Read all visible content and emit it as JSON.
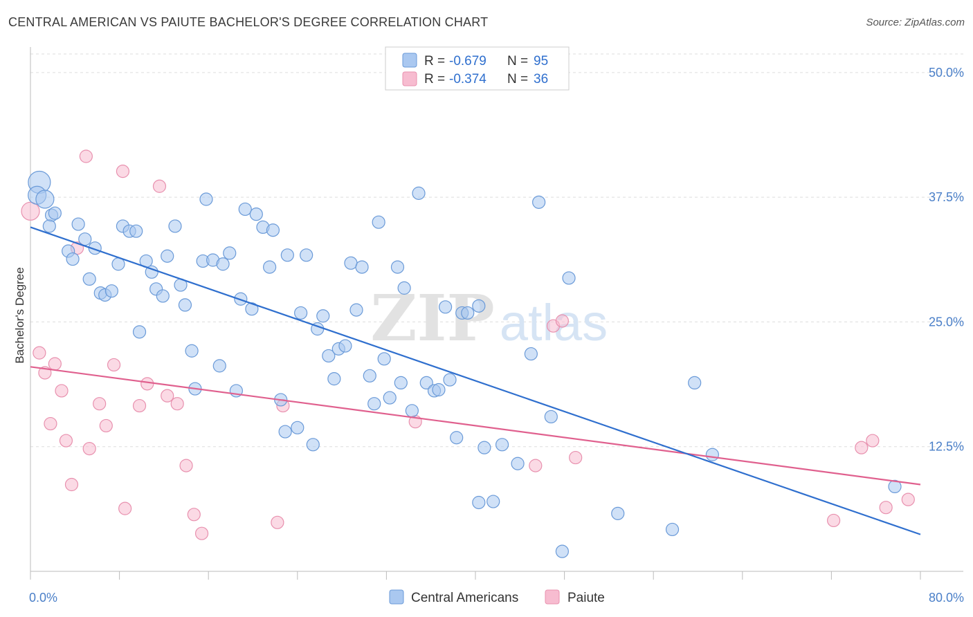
{
  "header": {
    "title": "CENTRAL AMERICAN VS PAIUTE BACHELOR'S DEGREE CORRELATION CHART",
    "source": "Source: ZipAtlas.com"
  },
  "watermark": {
    "zip": "ZIP",
    "atlas": "atlas"
  },
  "legend_top": {
    "r_label": "R =",
    "n_label": "N =",
    "rows": [
      {
        "r": "-0.679",
        "n": "95"
      },
      {
        "r": "-0.374",
        "n": "36"
      }
    ]
  },
  "colors": {
    "blue_fill": "#aac8f0",
    "blue_stroke": "#6a9ad8",
    "blue_line": "#2f6fce",
    "pink_fill": "#f7bcd0",
    "pink_stroke": "#e890ae",
    "pink_line": "#e0608e",
    "grid": "#dddddd",
    "tick_label": "#4a7fc8"
  },
  "chart_data": {
    "type": "scatter",
    "title": "CENTRAL AMERICAN VS PAIUTE BACHELOR'S DEGREE CORRELATION CHART",
    "xlabel": "",
    "ylabel": "Bachelor's Degree",
    "xlim": [
      0,
      80
    ],
    "ylim": [
      0,
      52
    ],
    "x_tick_labels": [
      "0.0%",
      "80.0%"
    ],
    "y_ticks": [
      12.5,
      25.0,
      37.5,
      50.0
    ],
    "y_tick_labels": [
      "12.5%",
      "25.0%",
      "37.5%",
      "50.0%"
    ],
    "grid": "horizontal dashed",
    "legend_placement": "top-center",
    "series": [
      {
        "name": "Central Americans",
        "r": -0.679,
        "n": 95,
        "trend": {
          "x": [
            0,
            80
          ],
          "y": [
            34.5,
            3.7
          ]
        },
        "points": [
          {
            "x": 0.8,
            "y": 39.0,
            "s": 3
          },
          {
            "x": 0.6,
            "y": 37.7,
            "s": 2
          },
          {
            "x": 1.3,
            "y": 37.3,
            "s": 2
          },
          {
            "x": 1.9,
            "y": 35.7,
            "s": 1
          },
          {
            "x": 2.2,
            "y": 35.9,
            "s": 1
          },
          {
            "x": 1.7,
            "y": 34.6,
            "s": 1
          },
          {
            "x": 4.3,
            "y": 34.8,
            "s": 1
          },
          {
            "x": 3.4,
            "y": 32.1,
            "s": 1
          },
          {
            "x": 3.8,
            "y": 31.3,
            "s": 1
          },
          {
            "x": 4.9,
            "y": 33.3,
            "s": 1
          },
          {
            "x": 5.8,
            "y": 32.4,
            "s": 1
          },
          {
            "x": 5.3,
            "y": 29.3,
            "s": 1
          },
          {
            "x": 6.3,
            "y": 27.9,
            "s": 1
          },
          {
            "x": 6.7,
            "y": 27.7,
            "s": 1
          },
          {
            "x": 7.3,
            "y": 28.1,
            "s": 1
          },
          {
            "x": 7.9,
            "y": 30.8,
            "s": 1
          },
          {
            "x": 8.3,
            "y": 34.6,
            "s": 1
          },
          {
            "x": 8.9,
            "y": 34.1,
            "s": 1
          },
          {
            "x": 9.5,
            "y": 34.1,
            "s": 1
          },
          {
            "x": 10.4,
            "y": 31.1,
            "s": 1
          },
          {
            "x": 10.9,
            "y": 30.0,
            "s": 1
          },
          {
            "x": 11.3,
            "y": 28.3,
            "s": 1
          },
          {
            "x": 11.9,
            "y": 27.6,
            "s": 1
          },
          {
            "x": 12.3,
            "y": 31.6,
            "s": 1
          },
          {
            "x": 13.0,
            "y": 34.6,
            "s": 1
          },
          {
            "x": 13.5,
            "y": 28.7,
            "s": 1
          },
          {
            "x": 13.9,
            "y": 26.7,
            "s": 1
          },
          {
            "x": 9.8,
            "y": 24.0,
            "s": 1
          },
          {
            "x": 14.5,
            "y": 22.1,
            "s": 1
          },
          {
            "x": 14.8,
            "y": 18.3,
            "s": 1
          },
          {
            "x": 15.5,
            "y": 31.1,
            "s": 1
          },
          {
            "x": 15.8,
            "y": 37.3,
            "s": 1
          },
          {
            "x": 16.4,
            "y": 31.2,
            "s": 1
          },
          {
            "x": 17.0,
            "y": 20.6,
            "s": 1
          },
          {
            "x": 17.3,
            "y": 30.8,
            "s": 1
          },
          {
            "x": 17.9,
            "y": 31.9,
            "s": 1
          },
          {
            "x": 18.5,
            "y": 18.1,
            "s": 1
          },
          {
            "x": 18.9,
            "y": 27.3,
            "s": 1
          },
          {
            "x": 19.3,
            "y": 36.3,
            "s": 1
          },
          {
            "x": 19.9,
            "y": 26.3,
            "s": 1
          },
          {
            "x": 20.3,
            "y": 35.8,
            "s": 1
          },
          {
            "x": 20.9,
            "y": 34.5,
            "s": 1
          },
          {
            "x": 21.5,
            "y": 30.5,
            "s": 1
          },
          {
            "x": 21.8,
            "y": 34.2,
            "s": 1
          },
          {
            "x": 22.5,
            "y": 17.2,
            "s": 1
          },
          {
            "x": 22.9,
            "y": 14.0,
            "s": 1
          },
          {
            "x": 23.1,
            "y": 31.7,
            "s": 1
          },
          {
            "x": 24.0,
            "y": 14.4,
            "s": 1
          },
          {
            "x": 24.3,
            "y": 25.9,
            "s": 1
          },
          {
            "x": 24.8,
            "y": 31.7,
            "s": 1
          },
          {
            "x": 25.4,
            "y": 12.7,
            "s": 1
          },
          {
            "x": 25.8,
            "y": 24.3,
            "s": 1
          },
          {
            "x": 26.3,
            "y": 25.6,
            "s": 1
          },
          {
            "x": 26.8,
            "y": 21.6,
            "s": 1
          },
          {
            "x": 27.3,
            "y": 19.3,
            "s": 1
          },
          {
            "x": 27.7,
            "y": 22.3,
            "s": 1
          },
          {
            "x": 28.3,
            "y": 22.6,
            "s": 1
          },
          {
            "x": 28.8,
            "y": 30.9,
            "s": 1
          },
          {
            "x": 29.3,
            "y": 26.2,
            "s": 1
          },
          {
            "x": 29.8,
            "y": 30.5,
            "s": 1
          },
          {
            "x": 30.5,
            "y": 19.6,
            "s": 1
          },
          {
            "x": 30.9,
            "y": 16.8,
            "s": 1
          },
          {
            "x": 31.3,
            "y": 35.0,
            "s": 1
          },
          {
            "x": 31.8,
            "y": 21.3,
            "s": 1
          },
          {
            "x": 32.3,
            "y": 17.4,
            "s": 1
          },
          {
            "x": 33.0,
            "y": 30.5,
            "s": 1
          },
          {
            "x": 33.3,
            "y": 18.9,
            "s": 1
          },
          {
            "x": 33.6,
            "y": 28.4,
            "s": 1
          },
          {
            "x": 34.3,
            "y": 16.1,
            "s": 1
          },
          {
            "x": 34.9,
            "y": 37.9,
            "s": 1
          },
          {
            "x": 35.6,
            "y": 18.9,
            "s": 1
          },
          {
            "x": 36.3,
            "y": 18.1,
            "s": 1
          },
          {
            "x": 36.7,
            "y": 18.2,
            "s": 1
          },
          {
            "x": 37.3,
            "y": 26.5,
            "s": 1
          },
          {
            "x": 37.7,
            "y": 19.2,
            "s": 1
          },
          {
            "x": 38.3,
            "y": 13.4,
            "s": 1
          },
          {
            "x": 38.8,
            "y": 25.9,
            "s": 1
          },
          {
            "x": 39.3,
            "y": 25.9,
            "s": 1
          },
          {
            "x": 40.3,
            "y": 6.9,
            "s": 1
          },
          {
            "x": 40.3,
            "y": 26.6,
            "s": 1
          },
          {
            "x": 41.6,
            "y": 7.0,
            "s": 1
          },
          {
            "x": 40.8,
            "y": 12.4,
            "s": 1
          },
          {
            "x": 42.4,
            "y": 12.7,
            "s": 1
          },
          {
            "x": 43.8,
            "y": 10.8,
            "s": 1
          },
          {
            "x": 45.7,
            "y": 37.0,
            "s": 1
          },
          {
            "x": 45.0,
            "y": 21.8,
            "s": 1
          },
          {
            "x": 46.8,
            "y": 15.5,
            "s": 1
          },
          {
            "x": 48.4,
            "y": 29.4,
            "s": 1
          },
          {
            "x": 47.8,
            "y": 2.0,
            "s": 1
          },
          {
            "x": 52.8,
            "y": 5.8,
            "s": 1
          },
          {
            "x": 57.7,
            "y": 4.2,
            "s": 1
          },
          {
            "x": 59.7,
            "y": 18.9,
            "s": 1
          },
          {
            "x": 61.3,
            "y": 11.7,
            "s": 1
          },
          {
            "x": 77.7,
            "y": 8.5,
            "s": 1
          }
        ]
      },
      {
        "name": "Paiute",
        "r": -0.374,
        "n": 36,
        "trend": {
          "x": [
            0,
            80
          ],
          "y": [
            20.5,
            8.7
          ]
        },
        "points": [
          {
            "x": 0.0,
            "y": 36.1,
            "s": 2
          },
          {
            "x": 0.8,
            "y": 21.9,
            "s": 1
          },
          {
            "x": 1.3,
            "y": 19.9,
            "s": 1
          },
          {
            "x": 1.8,
            "y": 14.8,
            "s": 1
          },
          {
            "x": 2.2,
            "y": 20.8,
            "s": 1
          },
          {
            "x": 2.8,
            "y": 18.1,
            "s": 1
          },
          {
            "x": 3.2,
            "y": 13.1,
            "s": 1
          },
          {
            "x": 3.7,
            "y": 8.7,
            "s": 1
          },
          {
            "x": 4.2,
            "y": 32.4,
            "s": 1
          },
          {
            "x": 5.0,
            "y": 41.6,
            "s": 1
          },
          {
            "x": 5.3,
            "y": 12.3,
            "s": 1
          },
          {
            "x": 6.2,
            "y": 16.8,
            "s": 1
          },
          {
            "x": 6.8,
            "y": 14.6,
            "s": 1
          },
          {
            "x": 7.5,
            "y": 20.7,
            "s": 1
          },
          {
            "x": 8.3,
            "y": 40.1,
            "s": 1
          },
          {
            "x": 8.5,
            "y": 6.3,
            "s": 1
          },
          {
            "x": 9.8,
            "y": 16.6,
            "s": 1
          },
          {
            "x": 10.5,
            "y": 18.8,
            "s": 1
          },
          {
            "x": 11.6,
            "y": 38.6,
            "s": 1
          },
          {
            "x": 12.3,
            "y": 17.6,
            "s": 1
          },
          {
            "x": 13.2,
            "y": 16.8,
            "s": 1
          },
          {
            "x": 14.0,
            "y": 10.6,
            "s": 1
          },
          {
            "x": 14.7,
            "y": 5.7,
            "s": 1
          },
          {
            "x": 15.4,
            "y": 3.8,
            "s": 1
          },
          {
            "x": 22.2,
            "y": 4.9,
            "s": 1
          },
          {
            "x": 22.7,
            "y": 16.6,
            "s": 1
          },
          {
            "x": 34.6,
            "y": 15.0,
            "s": 1
          },
          {
            "x": 45.4,
            "y": 10.6,
            "s": 1
          },
          {
            "x": 47.0,
            "y": 24.6,
            "s": 1
          },
          {
            "x": 47.8,
            "y": 25.1,
            "s": 1
          },
          {
            "x": 49.0,
            "y": 11.4,
            "s": 1
          },
          {
            "x": 72.2,
            "y": 5.1,
            "s": 1
          },
          {
            "x": 74.7,
            "y": 12.4,
            "s": 1
          },
          {
            "x": 75.7,
            "y": 13.1,
            "s": 1
          },
          {
            "x": 76.9,
            "y": 6.4,
            "s": 1
          },
          {
            "x": 78.9,
            "y": 7.2,
            "s": 1
          }
        ]
      }
    ]
  }
}
